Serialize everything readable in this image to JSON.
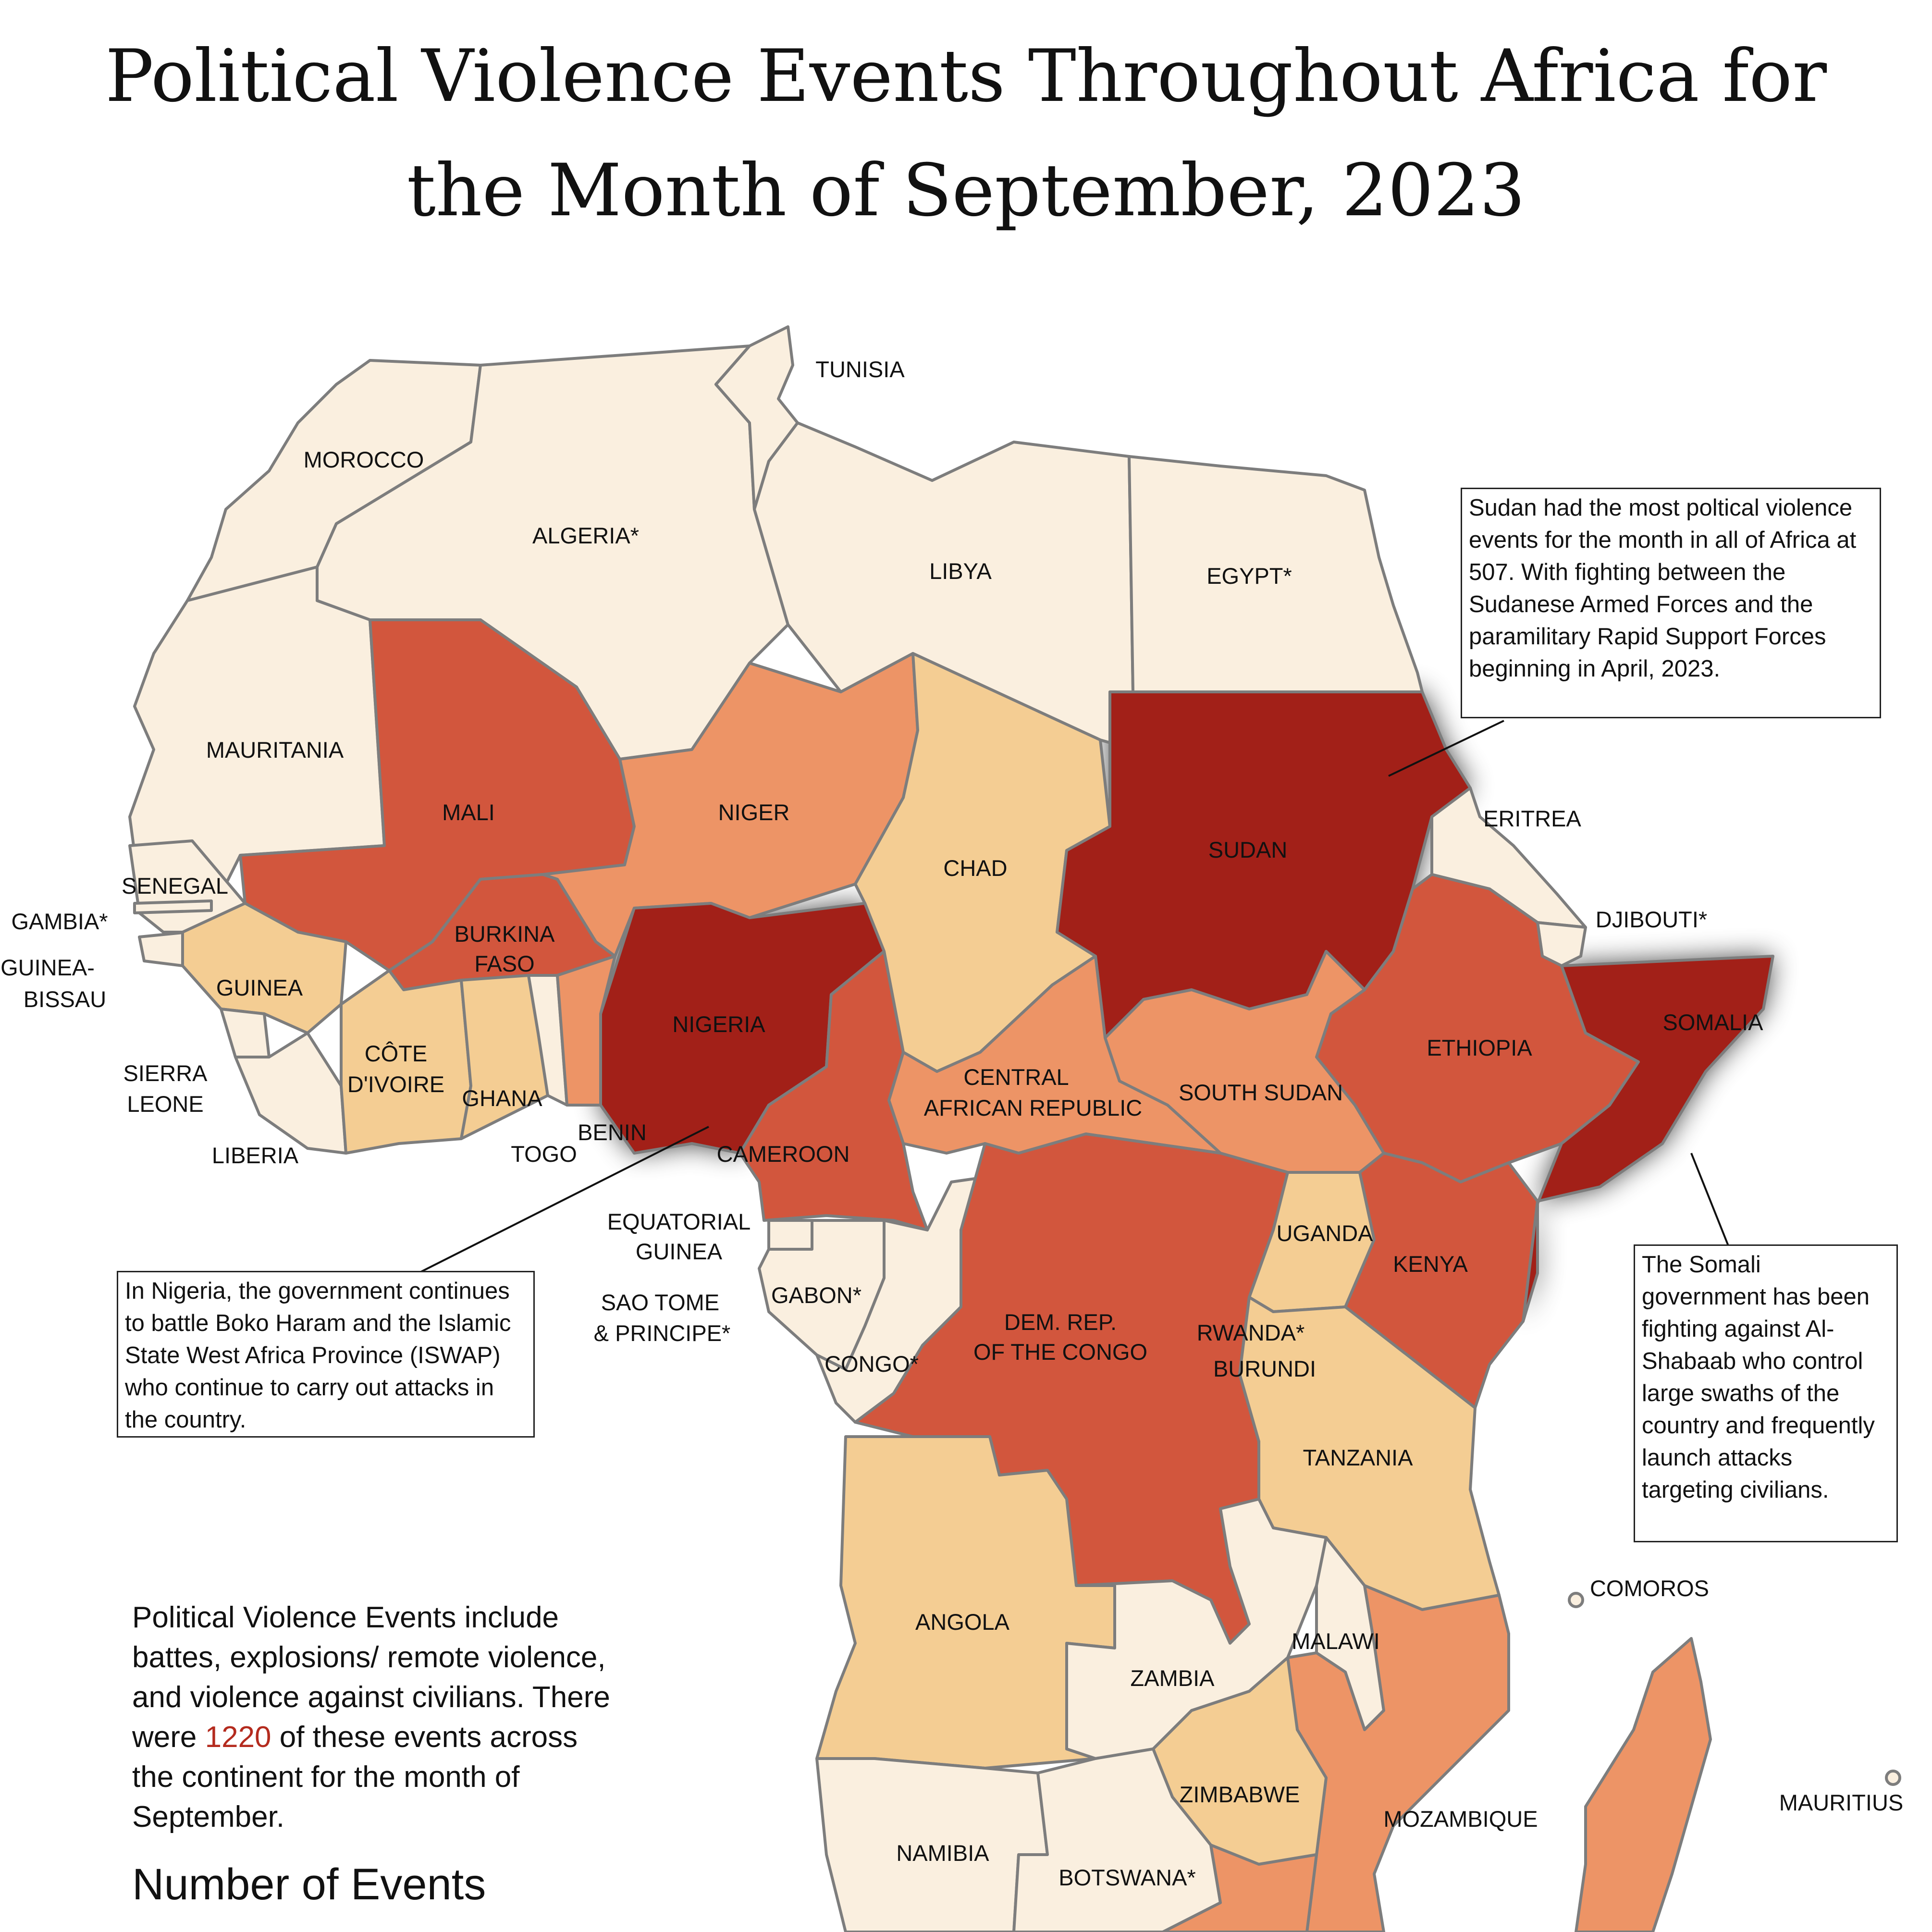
{
  "title_line1": "Political Violence Events Throughout Africa for",
  "title_line2": "the Month of September, 2023",
  "colors": {
    "lowest": "#faefdf",
    "low": "#f4cd93",
    "medium": "#ed9466",
    "high": "#d2563d",
    "highest": "#a22018",
    "border": "#7d7d7d",
    "highlight_text": "#b42b1e"
  },
  "countries": [
    {
      "name": "TUNISIA",
      "category": "lowest"
    },
    {
      "name": "MOROCCO",
      "category": "lowest"
    },
    {
      "name": "ALGERIA*",
      "category": "lowest"
    },
    {
      "name": "LIBYA",
      "category": "lowest"
    },
    {
      "name": "EGYPT*",
      "category": "lowest"
    },
    {
      "name": "MAURITANIA",
      "category": "lowest"
    },
    {
      "name": "MALI",
      "category": "high"
    },
    {
      "name": "NIGER",
      "category": "medium"
    },
    {
      "name": "CHAD",
      "category": "low"
    },
    {
      "name": "SUDAN",
      "category": "highest"
    },
    {
      "name": "ERITREA",
      "category": "lowest"
    },
    {
      "name": "DJIBOUTI*",
      "category": "lowest"
    },
    {
      "name": "SOMALIA",
      "category": "highest"
    },
    {
      "name": "ETHIOPIA",
      "category": "high"
    },
    {
      "name": "SOUTH SUDAN",
      "category": "medium"
    },
    {
      "name": "CENTRAL AFRICAN REPUBLIC",
      "category": "medium"
    },
    {
      "name": "NIGERIA",
      "category": "highest"
    },
    {
      "name": "CAMEROON",
      "category": "high"
    },
    {
      "name": "BURKINA FASO",
      "category": "high"
    },
    {
      "name": "SENEGAL",
      "category": "lowest"
    },
    {
      "name": "GAMBIA*",
      "category": "lowest"
    },
    {
      "name": "GUINEA-BISSAU",
      "category": "lowest"
    },
    {
      "name": "GUINEA",
      "category": "low"
    },
    {
      "name": "SIERRA LEONE",
      "category": "lowest"
    },
    {
      "name": "LIBERIA",
      "category": "lowest"
    },
    {
      "name": "CÔTE D'IVOIRE",
      "category": "low"
    },
    {
      "name": "GHANA",
      "category": "low"
    },
    {
      "name": "TOGO",
      "category": "lowest"
    },
    {
      "name": "BENIN",
      "category": "medium"
    },
    {
      "name": "EQUATORIAL GUINEA",
      "category": "lowest"
    },
    {
      "name": "SAO TOME & PRINCIPE*",
      "category": "lowest"
    },
    {
      "name": "GABON*",
      "category": "lowest"
    },
    {
      "name": "CONGO*",
      "category": "lowest"
    },
    {
      "name": "DEM. REP. OF THE CONGO",
      "category": "high"
    },
    {
      "name": "UGANDA",
      "category": "low"
    },
    {
      "name": "KENYA",
      "category": "high"
    },
    {
      "name": "RWANDA*",
      "category": "lowest"
    },
    {
      "name": "BURUNDI",
      "category": "medium"
    },
    {
      "name": "TANZANIA",
      "category": "low"
    },
    {
      "name": "ANGOLA",
      "category": "low"
    },
    {
      "name": "ZAMBIA",
      "category": "lowest"
    },
    {
      "name": "MALAWI",
      "category": "lowest"
    },
    {
      "name": "MOZAMBIQUE",
      "category": "medium"
    },
    {
      "name": "ZIMBABWE",
      "category": "low"
    },
    {
      "name": "NAMIBIA",
      "category": "lowest"
    },
    {
      "name": "BOTSWANA*",
      "category": "lowest"
    },
    {
      "name": "COMOROS",
      "category": "lowest"
    },
    {
      "name": "MAURITIUS",
      "category": "lowest"
    },
    {
      "name": "MADAGASCAR",
      "category": "medium"
    }
  ],
  "labels": {
    "tunisia": "TUNISIA",
    "morocco": "MOROCCO",
    "algeria": "ALGERIA*",
    "libya": "LIBYA",
    "egypt": "EGYPT*",
    "mauritania": "MAURITANIA",
    "mali": "MALI",
    "niger": "NIGER",
    "chad": "CHAD",
    "sudan": "SUDAN",
    "eritrea": "ERITREA",
    "djibouti": "DJIBOUTI*",
    "somalia": "SOMALIA",
    "ethiopia": "ETHIOPIA",
    "south_sudan": "SOUTH SUDAN",
    "car_1": "CENTRAL",
    "car_2": "AFRICAN REPUBLIC",
    "nigeria": "NIGERIA",
    "cameroon": "CAMEROON",
    "burkina_1": "BURKINA",
    "burkina_2": "FASO",
    "senegal": "SENEGAL",
    "gambia": "GAMBIA*",
    "gbissau_1": "GUINEA-",
    "gbissau_2": "BISSAU",
    "guinea": "GUINEA",
    "sierra_1": "SIERRA",
    "sierra_2": "LEONE",
    "liberia": "LIBERIA",
    "civ_1": "CÔTE",
    "civ_2": "D'IVOIRE",
    "ghana": "GHANA",
    "togo": "TOGO",
    "benin": "BENIN",
    "eqg_1": "EQUATORIAL",
    "eqg_2": "GUINEA",
    "stp_1": "SAO TOME",
    "stp_2": "& PRINCIPE*",
    "gabon": "GABON*",
    "congo": "CONGO*",
    "drc_1": "DEM. REP.",
    "drc_2": "OF THE CONGO",
    "uganda": "UGANDA",
    "kenya": "KENYA",
    "rwanda": "RWANDA*",
    "burundi": "BURUNDI",
    "tanzania": "TANZANIA",
    "angola": "ANGOLA",
    "zambia": "ZAMBIA",
    "malawi": "MALAWI",
    "mozambique": "MOZAMBIQUE",
    "zimbabwe": "ZIMBABWE",
    "namibia": "NAMIBIA",
    "botswana": "BOTSWANA*",
    "comoros": "COMOROS",
    "mauritius": "MAURITIUS"
  },
  "callouts": {
    "sudan": "Sudan had the most poltical violence events for the month in all of Africa at 507. With fighting between the Sudanese Armed Forces and the paramilitary Rapid Support Forces beginning in April, 2023.",
    "nigeria": "In Nigeria, the government continues to battle Boko Haram and the Islamic State West Africa Province (ISWAP) who continue to carry out attacks in the country.",
    "somalia": "The Somali government has been fighting against Al-Shabaab who control large swaths of the country and frequently launch attacks targeting civilians."
  },
  "note": {
    "before": "Political Violence Events include battes, explosions/ remote violence, and violence against civilians. There were ",
    "total": "1220",
    "after": " of these events across the continent for the month of September."
  },
  "legend_title": "Number of Events"
}
